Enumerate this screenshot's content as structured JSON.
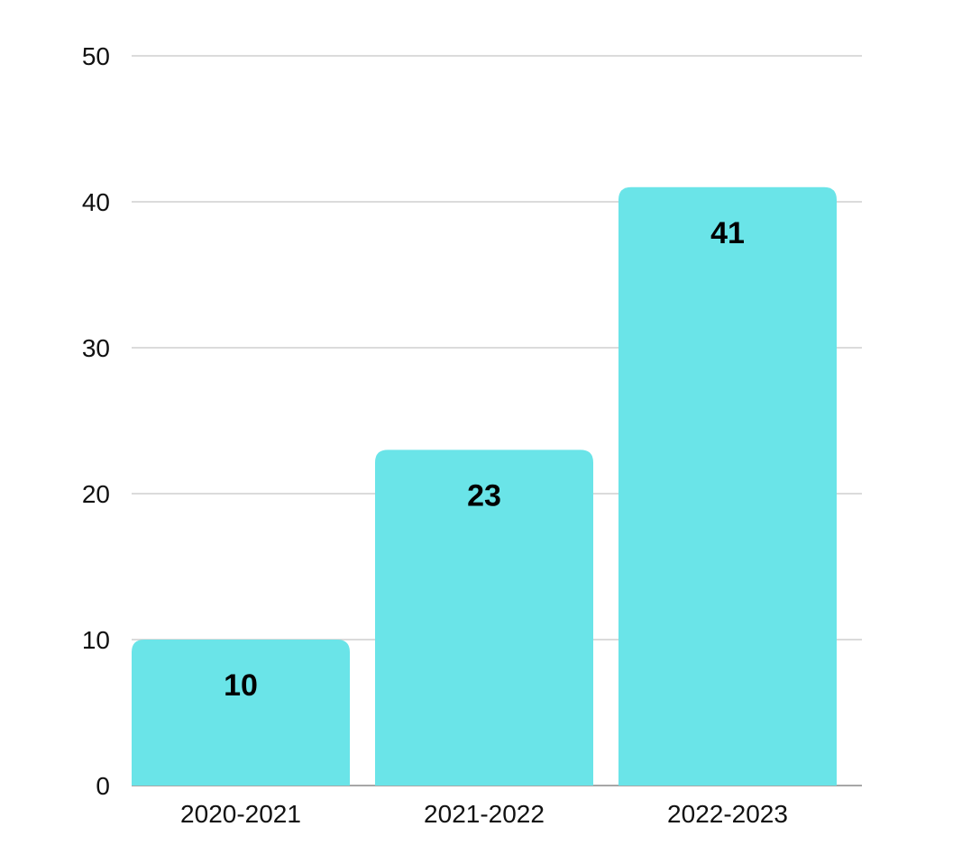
{
  "chart_data": {
    "type": "bar",
    "categories": [
      "2020-2021",
      "2021-2022",
      "2022-2023"
    ],
    "values": [
      10,
      23,
      41
    ],
    "data_labels": [
      "10",
      "23",
      "41"
    ],
    "title": "",
    "xlabel": "",
    "ylabel": "",
    "ylim": [
      0,
      50
    ],
    "yticks": [
      0,
      10,
      20,
      30,
      40,
      50
    ],
    "ytick_labels": [
      "0",
      "10",
      "20",
      "30",
      "40",
      "50"
    ],
    "grid": true,
    "legend": "none",
    "bar_color": "#6AE4E8"
  }
}
